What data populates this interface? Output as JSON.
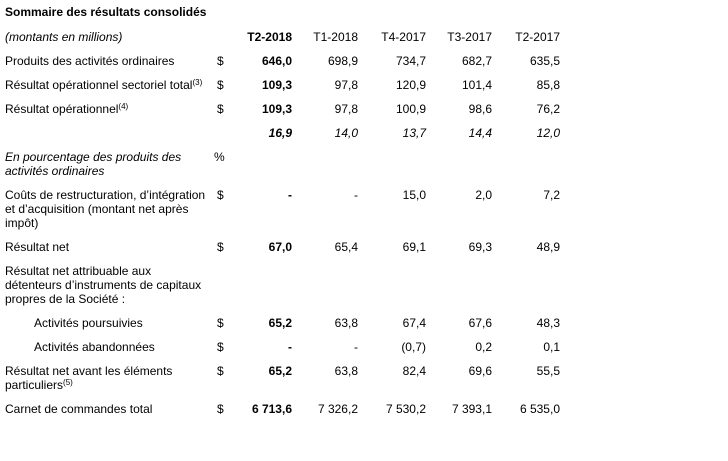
{
  "title": "Sommaire des résultats consolidés",
  "header": {
    "label": "(montants en millions)",
    "periods": [
      "T2-2018",
      "T1-2018",
      "T4-2017",
      "T3-2017",
      "T2-2017"
    ]
  },
  "rows": [
    {
      "label": "Produits des activités ordinaires",
      "sup": "",
      "currency": "$",
      "values": [
        "646,0",
        "698,9",
        "734,7",
        "682,7",
        "635,5"
      ]
    },
    {
      "label": "Résultat opérationnel sectoriel total",
      "sup": "(3)",
      "currency": "$",
      "values": [
        "109,3",
        "97,8",
        "120,9",
        "101,4",
        "85,8"
      ]
    },
    {
      "label": "Résultat opérationnel",
      "sup": "(4)",
      "currency": "$",
      "values": [
        "109,3",
        "97,8",
        "100,9",
        "98,6",
        "76,2"
      ]
    },
    {
      "label": "",
      "sup": "",
      "currency": "",
      "values": [
        "16,9",
        "14,0",
        "13,7",
        "14,4",
        "12,0"
      ]
    },
    {
      "label": "En pourcentage des produits des activités ordinaires",
      "sup": "",
      "currency": "%",
      "values": []
    },
    {
      "label": "Coûts de restructuration, d’intégration et d’acquisition (montant net après impôt)",
      "sup": "",
      "currency": "$",
      "values": [
        "-",
        "-",
        "15,0",
        "2,0",
        "7,2"
      ]
    },
    {
      "label": "Résultat net",
      "sup": "",
      "currency": "$",
      "values": [
        "67,0",
        "65,4",
        "69,1",
        "69,3",
        "48,9"
      ]
    },
    {
      "label": "Résultat net attribuable aux détenteurs d’instruments de capitaux propres de la Société :",
      "sup": "",
      "currency": "",
      "values": []
    },
    {
      "label": "Activités poursuivies",
      "sup": "",
      "currency": "$",
      "values": [
        "65,2",
        "63,8",
        "67,4",
        "67,6",
        "48,3"
      ]
    },
    {
      "label": "Activités abandonnées",
      "sup": "",
      "currency": "$",
      "values": [
        "-",
        "-",
        "(0,7)",
        "0,2",
        "0,1"
      ]
    },
    {
      "label": "Résultat net avant les éléments particuliers",
      "sup": "(5)",
      "currency": "$",
      "values": [
        "65,2",
        "63,8",
        "82,4",
        "69,6",
        "55,5"
      ]
    },
    {
      "label": "Carnet de commandes total",
      "sup": "",
      "currency": "$",
      "values": [
        "6 713,6",
        "7 326,2",
        "7 530,2",
        "7 393,1",
        "6 535,0"
      ]
    }
  ]
}
